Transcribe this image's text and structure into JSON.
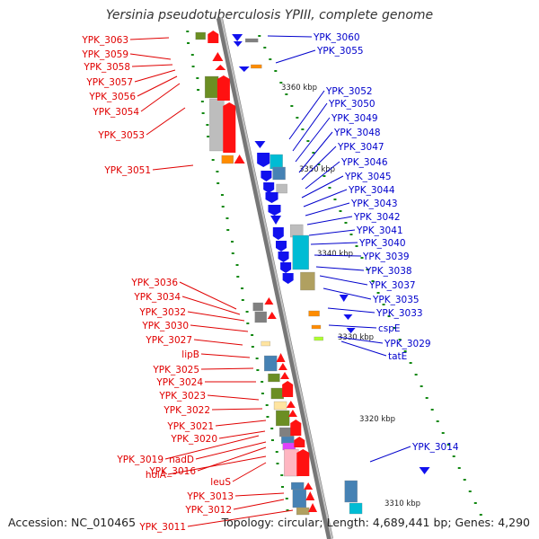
{
  "title": "Yersinia pseudotuberculosis YPIII, complete genome",
  "footer": {
    "accession": "Accession: NC_010465",
    "summary": "Topology: circular; Length: 4,689,441 bp; Genes: 4,290"
  },
  "colors": {
    "forward_label": "#e00000",
    "reverse_label": "#0000cc",
    "forward_arrow": "#ff1111",
    "reverse_arrow": "#1111ee",
    "backbone": "#8c8c8c",
    "tick": "#118811",
    "cog": [
      "#bdbdbd",
      "#6b8e23",
      "#00bcd4",
      "#ff8c00",
      "#ffb6c1",
      "#808080",
      "#ffe4a0",
      "#b0a060",
      "#f06080",
      "#4682b4",
      "#adff2f",
      "#e040fb"
    ]
  },
  "scale_marks": [
    "3360 kbp",
    "3350 kbp",
    "3340 kbp",
    "3330 kbp",
    "3320 kbp",
    "3310 kbp"
  ],
  "forward_genes": [
    "YPK_3063",
    "YPK_3059",
    "YPK_3058",
    "YPK_3057",
    "YPK_3056",
    "YPK_3054",
    "YPK_3053",
    "YPK_3051",
    "YPK_3036",
    "YPK_3034",
    "YPK_3032",
    "YPK_3030",
    "YPK_3027",
    "lipB",
    "YPK_3025",
    "YPK_3024",
    "YPK_3023",
    "YPK_3022",
    "YPK_3021",
    "YPK_3020",
    "YPK_3019",
    "nadD",
    "YPK_3016",
    "holA",
    "leuS",
    "YPK_3013",
    "YPK_3012",
    "YPK_3011"
  ],
  "reverse_genes": [
    "YPK_3060",
    "YPK_3055",
    "YPK_3052",
    "YPK_3050",
    "YPK_3049",
    "YPK_3048",
    "YPK_3047",
    "YPK_3046",
    "YPK_3045",
    "YPK_3044",
    "YPK_3043",
    "YPK_3042",
    "YPK_3041",
    "YPK_3040",
    "YPK_3039",
    "YPK_3038",
    "YPK_3037",
    "YPK_3035",
    "YPK_3033",
    "cspE",
    "YPK_3029",
    "tatE",
    "YPK_3014"
  ]
}
